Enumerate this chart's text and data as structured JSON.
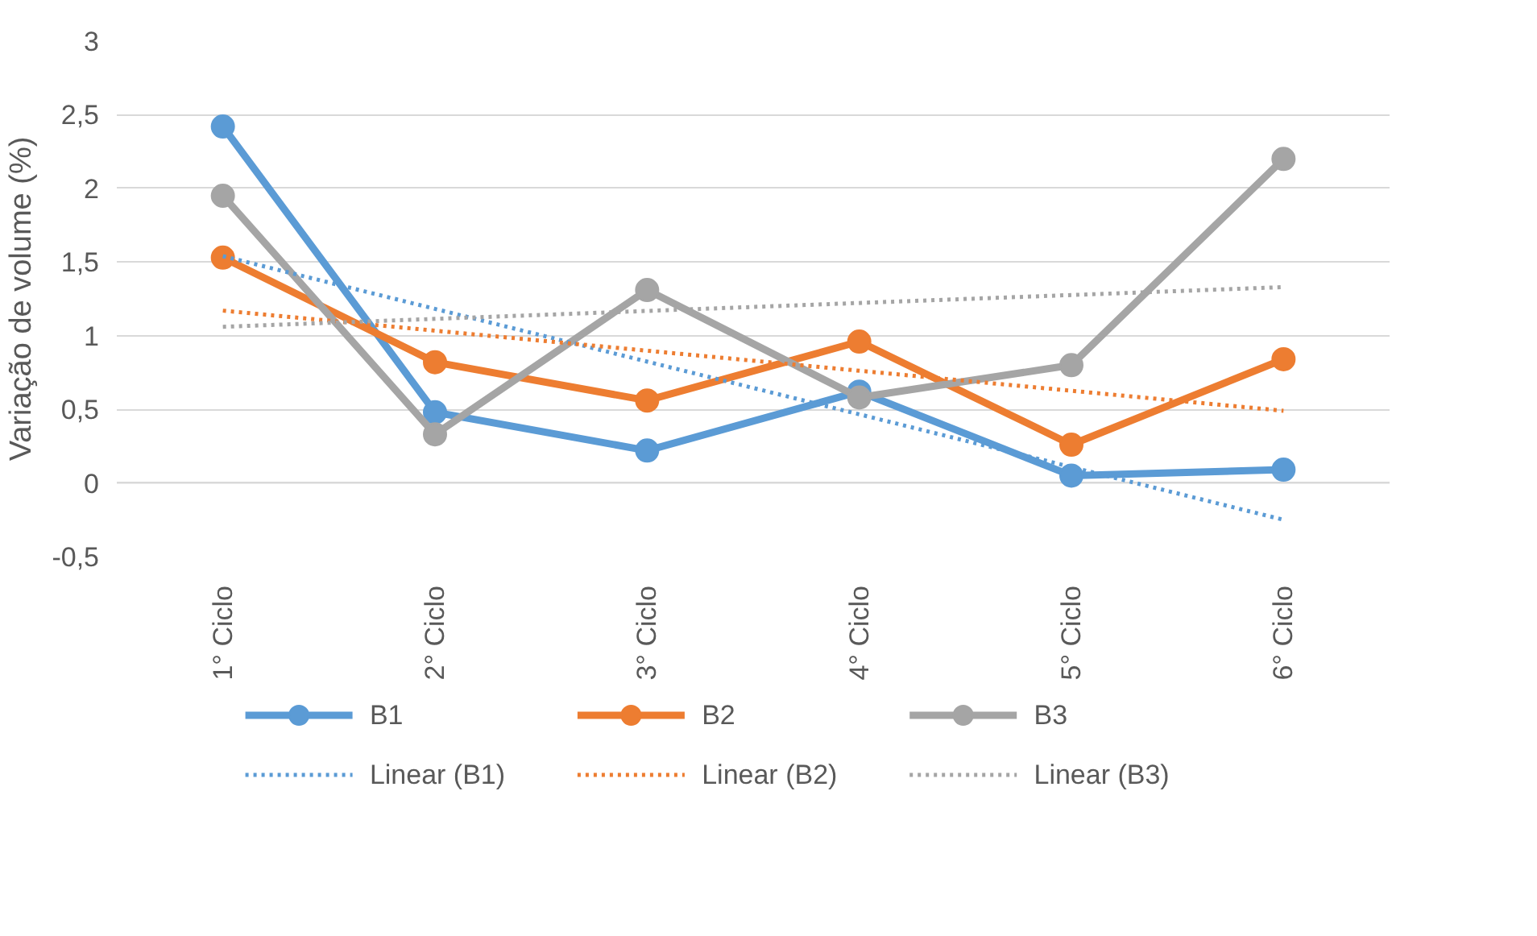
{
  "chart_data": {
    "type": "line",
    "ylabel": "Variação de volume (%)",
    "categories": [
      "1° Ciclo",
      "2° Ciclo",
      "3° Ciclo",
      "4° Ciclo",
      "5° Ciclo",
      "6° Ciclo"
    ],
    "ylim": [
      -0.5,
      3
    ],
    "yticks": [
      {
        "value": -0.5,
        "label": "-0,5"
      },
      0,
      {
        "value": 0.5,
        "label": "0,5"
      },
      1,
      {
        "value": 1.5,
        "label": "1,5"
      },
      2,
      {
        "value": 2.5,
        "label": "2,5"
      },
      3
    ],
    "grid": "y",
    "legend": "bottom",
    "marker": "circle",
    "line_style": "solid",
    "series": [
      {
        "name": "B1",
        "color": "#5b9bd5",
        "values": [
          2.42,
          0.48,
          0.22,
          0.62,
          0.05,
          0.09
        ]
      },
      {
        "name": "B2",
        "color": "#ed7d31",
        "values": [
          1.53,
          0.82,
          0.56,
          0.96,
          0.26,
          0.84
        ]
      },
      {
        "name": "B3",
        "color": "#a5a5a5",
        "values": [
          1.95,
          0.33,
          1.31,
          0.58,
          0.8,
          2.2
        ]
      },
      {
        "name": "Linear (B1)",
        "color": "#5b9bd5",
        "marker": "none",
        "line_style": "dotted",
        "x": [
          "1° Ciclo",
          "6° Ciclo"
        ],
        "values": [
          1.54,
          -0.25
        ]
      },
      {
        "name": "Linear (B2)",
        "color": "#ed7d31",
        "marker": "none",
        "line_style": "dotted",
        "x": [
          "1° Ciclo",
          "6° Ciclo"
        ],
        "values": [
          1.17,
          0.49
        ]
      },
      {
        "name": "Linear (B3)",
        "color": "#a5a5a5",
        "marker": "none",
        "line_style": "dotted",
        "x": [
          "1° Ciclo",
          "6° Ciclo"
        ],
        "values": [
          1.06,
          1.33
        ]
      }
    ]
  }
}
